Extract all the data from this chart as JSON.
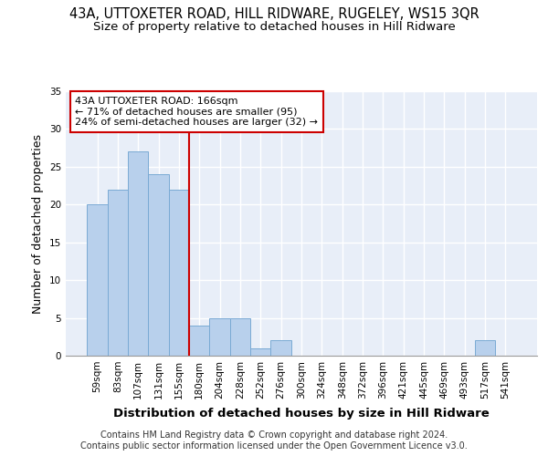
{
  "title_line1": "43A, UTTOXETER ROAD, HILL RIDWARE, RUGELEY, WS15 3QR",
  "title_line2": "Size of property relative to detached houses in Hill Ridware",
  "xlabel": "Distribution of detached houses by size in Hill Ridware",
  "ylabel": "Number of detached properties",
  "footnote1": "Contains HM Land Registry data © Crown copyright and database right 2024.",
  "footnote2": "Contains public sector information licensed under the Open Government Licence v3.0.",
  "categories": [
    "59sqm",
    "83sqm",
    "107sqm",
    "131sqm",
    "155sqm",
    "180sqm",
    "204sqm",
    "228sqm",
    "252sqm",
    "276sqm",
    "300sqm",
    "324sqm",
    "348sqm",
    "372sqm",
    "396sqm",
    "421sqm",
    "445sqm",
    "469sqm",
    "493sqm",
    "517sqm",
    "541sqm"
  ],
  "values": [
    20,
    22,
    27,
    24,
    22,
    4,
    5,
    5,
    1,
    2,
    0,
    0,
    0,
    0,
    0,
    0,
    0,
    0,
    0,
    2,
    0
  ],
  "bar_color": "#b8d0ec",
  "bar_edge_color": "#7aaad4",
  "vline_color": "#cc0000",
  "annotation_line1": "43A UTTOXETER ROAD: 166sqm",
  "annotation_line2": "← 71% of detached houses are smaller (95)",
  "annotation_line3": "24% of semi-detached houses are larger (32) →",
  "annotation_box_color": "white",
  "annotation_box_edge": "#cc0000",
  "ylim": [
    0,
    35
  ],
  "yticks": [
    0,
    5,
    10,
    15,
    20,
    25,
    30,
    35
  ],
  "background_color": "#e8eef8",
  "grid_color": "white",
  "title_fontsize": 10.5,
  "subtitle_fontsize": 9.5,
  "ylabel_fontsize": 9,
  "xlabel_fontsize": 9.5,
  "tick_fontsize": 7.5,
  "annotation_fontsize": 8,
  "footnote_fontsize": 7
}
